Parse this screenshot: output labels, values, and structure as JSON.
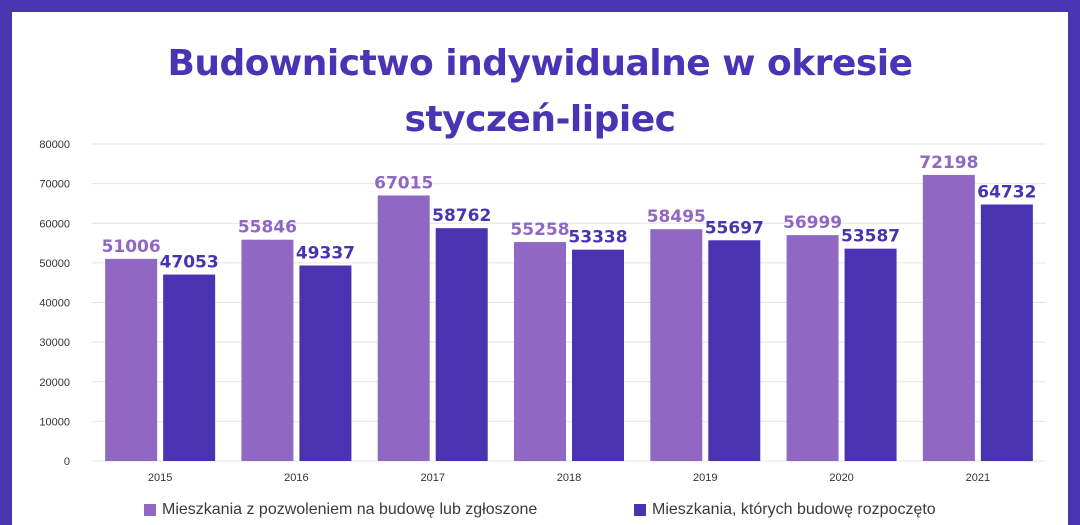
{
  "title_line1": "Budownictwo indywidualne w okresie",
  "title_line2": "styczeń-lipiec",
  "colors": {
    "permits": "#9068c4",
    "started": "#4a33b0",
    "frame": "#4a35b0",
    "grid": "#e4e4e4",
    "axis_text": "#333333"
  },
  "legend": {
    "permits_label": "Mieszkania z pozwoleniem na budowę lub zgłoszone",
    "started_label": "Mieszkania, których budowę rozpoczęto"
  },
  "chart_data": {
    "type": "bar",
    "title": "Budownictwo indywidualne w okresie styczeń-lipiec",
    "categories": [
      "2015",
      "2016",
      "2017",
      "2018",
      "2019",
      "2020",
      "2021"
    ],
    "series": [
      {
        "name": "Mieszkania z pozwoleniem na budowę lub zgłoszone",
        "values": [
          51006,
          55846,
          67015,
          55258,
          58495,
          56999,
          72198
        ]
      },
      {
        "name": "Mieszkania, których budowę rozpoczęto",
        "values": [
          47053,
          49337,
          58762,
          53338,
          55697,
          53587,
          64732
        ]
      }
    ],
    "ylim": [
      0,
      80000
    ],
    "yticks": [
      0,
      10000,
      20000,
      30000,
      40000,
      50000,
      60000,
      70000,
      80000
    ],
    "grid": true,
    "data_labels": true,
    "legend_position": "bottom"
  }
}
